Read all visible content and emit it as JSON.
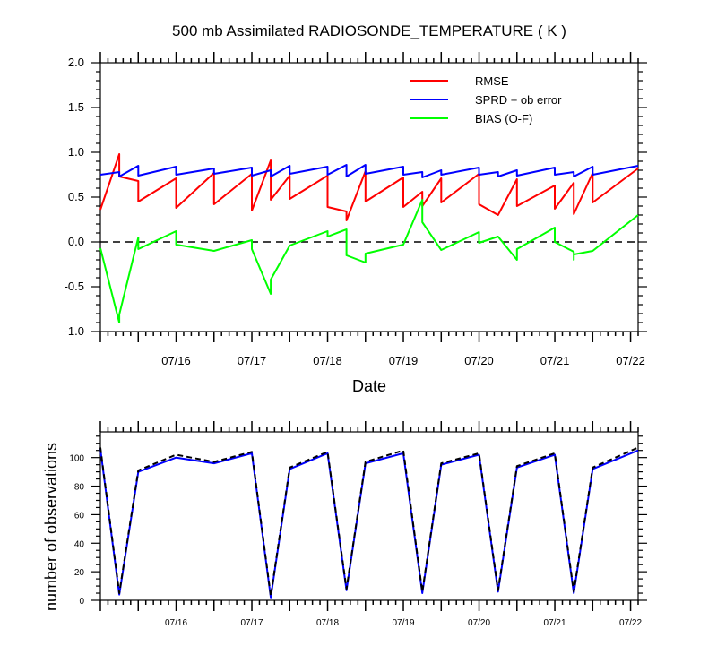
{
  "chart_data": [
    {
      "type": "line",
      "title": "500 mb Assimilated RADIOSONDE_TEMPERATURE ( K )",
      "xlabel": "Date",
      "ylabel": "",
      "x_tick_labels": [
        "07/16",
        "07/17",
        "07/18",
        "07/19",
        "07/20",
        "07/21",
        "07/22"
      ],
      "x_tick_positions_days": [
        1,
        2,
        3,
        4,
        5,
        6,
        7
      ],
      "xlim_days": [
        0,
        7.1
      ],
      "ylim": [
        -1.0,
        2.0
      ],
      "y_ticks": [
        "-1.0",
        "-0.5",
        "0.0",
        "0.5",
        "1.0",
        "1.5",
        "2.0"
      ],
      "zero_line": true,
      "legend": {
        "placement": "top-right"
      },
      "series": [
        {
          "name": "RMSE",
          "color": "#ff0000",
          "points": [
            [
              0,
              0.36
            ],
            [
              0.25,
              0.98
            ],
            [
              0.25,
              0.73
            ],
            [
              0.5,
              0.68
            ],
            [
              0.5,
              0.45
            ],
            [
              1,
              0.71
            ],
            [
              1,
              0.38
            ],
            [
              1.5,
              0.77
            ],
            [
              1.5,
              0.42
            ],
            [
              2,
              0.76
            ],
            [
              2,
              0.35
            ],
            [
              2.25,
              0.91
            ],
            [
              2.25,
              0.47
            ],
            [
              2.5,
              0.74
            ],
            [
              2.5,
              0.48
            ],
            [
              3,
              0.74
            ],
            [
              3,
              0.39
            ],
            [
              3.25,
              0.34
            ],
            [
              3.25,
              0.24
            ],
            [
              3.5,
              0.79
            ],
            [
              3.5,
              0.45
            ],
            [
              4,
              0.72
            ],
            [
              4,
              0.39
            ],
            [
              4.25,
              0.56
            ],
            [
              4.25,
              0.4
            ],
            [
              4.5,
              0.71
            ],
            [
              4.5,
              0.44
            ],
            [
              5,
              0.76
            ],
            [
              5,
              0.42
            ],
            [
              5.25,
              0.3
            ],
            [
              5.5,
              0.7
            ],
            [
              5.5,
              0.4
            ],
            [
              6,
              0.63
            ],
            [
              6,
              0.37
            ],
            [
              6.25,
              0.66
            ],
            [
              6.25,
              0.31
            ],
            [
              6.5,
              0.77
            ],
            [
              6.5,
              0.44
            ],
            [
              7.1,
              0.82
            ]
          ]
        },
        {
          "name": "SPRD + ob error",
          "color": "#0000ff",
          "points": [
            [
              0,
              0.75
            ],
            [
              0.25,
              0.78
            ],
            [
              0.25,
              0.73
            ],
            [
              0.5,
              0.85
            ],
            [
              0.5,
              0.74
            ],
            [
              1,
              0.84
            ],
            [
              1,
              0.75
            ],
            [
              1.5,
              0.82
            ],
            [
              1.5,
              0.76
            ],
            [
              2,
              0.83
            ],
            [
              2,
              0.74
            ],
            [
              2.25,
              0.8
            ],
            [
              2.25,
              0.73
            ],
            [
              2.5,
              0.85
            ],
            [
              2.5,
              0.76
            ],
            [
              3,
              0.84
            ],
            [
              3,
              0.75
            ],
            [
              3.25,
              0.86
            ],
            [
              3.25,
              0.73
            ],
            [
              3.5,
              0.86
            ],
            [
              3.5,
              0.76
            ],
            [
              4,
              0.84
            ],
            [
              4,
              0.75
            ],
            [
              4.25,
              0.78
            ],
            [
              4.25,
              0.72
            ],
            [
              4.5,
              0.8
            ],
            [
              4.5,
              0.75
            ],
            [
              5,
              0.83
            ],
            [
              5,
              0.75
            ],
            [
              5.25,
              0.78
            ],
            [
              5.25,
              0.73
            ],
            [
              5.5,
              0.8
            ],
            [
              5.5,
              0.74
            ],
            [
              6,
              0.83
            ],
            [
              6,
              0.75
            ],
            [
              6.25,
              0.78
            ],
            [
              6.25,
              0.73
            ],
            [
              6.5,
              0.84
            ],
            [
              6.5,
              0.75
            ],
            [
              7.1,
              0.85
            ]
          ]
        },
        {
          "name": "BIAS (O-F)",
          "color": "#00ff00",
          "points": [
            [
              0,
              -0.07
            ],
            [
              0.25,
              -0.9
            ],
            [
              0.25,
              -0.81
            ],
            [
              0.5,
              0.05
            ],
            [
              0.5,
              -0.08
            ],
            [
              1,
              0.12
            ],
            [
              1,
              -0.03
            ],
            [
              1.5,
              -0.1
            ],
            [
              2,
              0.02
            ],
            [
              2,
              -0.08
            ],
            [
              2.25,
              -0.58
            ],
            [
              2.25,
              -0.42
            ],
            [
              2.5,
              -0.04
            ],
            [
              3,
              0.12
            ],
            [
              3,
              0.06
            ],
            [
              3.25,
              0.14
            ],
            [
              3.25,
              -0.15
            ],
            [
              3.5,
              -0.23
            ],
            [
              3.5,
              -0.13
            ],
            [
              4,
              -0.03
            ],
            [
              4.25,
              0.47
            ],
            [
              4.25,
              0.22
            ],
            [
              4.5,
              -0.09
            ],
            [
              5,
              0.11
            ],
            [
              5,
              -0.01
            ],
            [
              5.25,
              0.06
            ],
            [
              5.5,
              -0.2
            ],
            [
              5.5,
              -0.08
            ],
            [
              6,
              0.16
            ],
            [
              6,
              0.0
            ],
            [
              6.25,
              -0.11
            ],
            [
              6.25,
              -0.2
            ],
            [
              6.25,
              -0.14
            ],
            [
              6.5,
              -0.1
            ],
            [
              7.1,
              0.3
            ]
          ]
        }
      ]
    },
    {
      "type": "line",
      "title": "",
      "xlabel": "",
      "ylabel": "number of observations",
      "x_tick_labels": [
        "07/16",
        "07/17",
        "07/18",
        "07/19",
        "07/20",
        "07/21",
        "07/22"
      ],
      "x_tick_positions_days": [
        1,
        2,
        3,
        4,
        5,
        6,
        7
      ],
      "xlim_days": [
        0,
        7.1
      ],
      "ylim": [
        0,
        118
      ],
      "y_ticks": [
        "0",
        "20",
        "40",
        "60",
        "80",
        "100"
      ],
      "series": [
        {
          "color": "#0000ff",
          "line_style": "solid",
          "points": [
            [
              0,
              106
            ],
            [
              0.25,
              4
            ],
            [
              0.5,
              90
            ],
            [
              1,
              100
            ],
            [
              1.5,
              96
            ],
            [
              2,
              103
            ],
            [
              2.25,
              2
            ],
            [
              2.5,
              92
            ],
            [
              3,
              103
            ],
            [
              3.25,
              7
            ],
            [
              3.5,
              96
            ],
            [
              4,
              103
            ],
            [
              4.25,
              5
            ],
            [
              4.5,
              95
            ],
            [
              5,
              102
            ],
            [
              5.25,
              6
            ],
            [
              5.5,
              93
            ],
            [
              6,
              102
            ],
            [
              6.25,
              5
            ],
            [
              6.5,
              92
            ],
            [
              7.1,
              105
            ]
          ]
        },
        {
          "color": "#000000",
          "line_style": "dashed",
          "points": [
            [
              0,
              107
            ],
            [
              0.25,
              5
            ],
            [
              0.5,
              91
            ],
            [
              1,
              102
            ],
            [
              1.5,
              97
            ],
            [
              2,
              104
            ],
            [
              2.25,
              3
            ],
            [
              2.5,
              93
            ],
            [
              3,
              104
            ],
            [
              3.25,
              8
            ],
            [
              3.5,
              97
            ],
            [
              4,
              105
            ],
            [
              4.25,
              6
            ],
            [
              4.5,
              96
            ],
            [
              5,
              103
            ],
            [
              5.25,
              7
            ],
            [
              5.5,
              94
            ],
            [
              6,
              103
            ],
            [
              6.25,
              6
            ],
            [
              6.5,
              93
            ],
            [
              7.1,
              107
            ]
          ]
        }
      ]
    }
  ]
}
